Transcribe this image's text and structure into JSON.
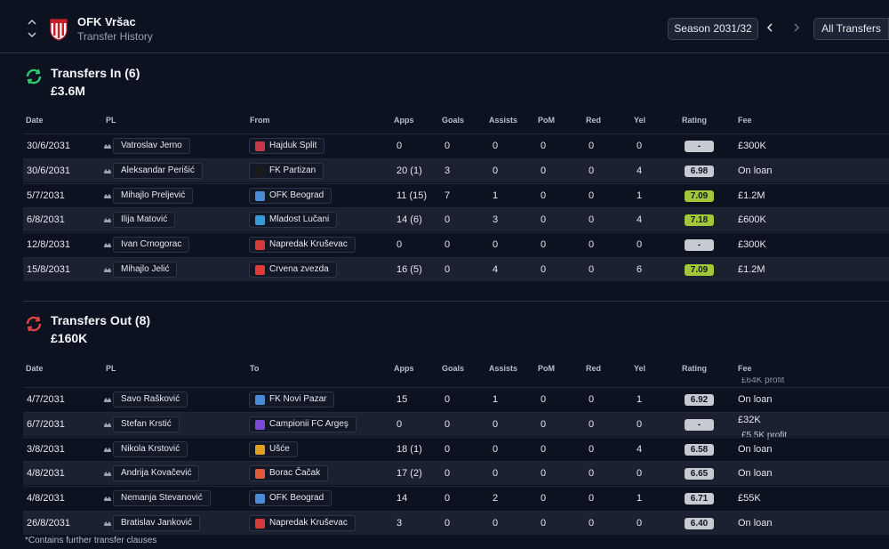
{
  "header": {
    "club_name": "OFK Vršac",
    "subtitle": "Transfer History",
    "season_label": "Season 2031/32",
    "all_transfers_label": "All Transfers",
    "prev_icon": "chevron-left-icon",
    "next_icon": "chevron-right-icon"
  },
  "colors": {
    "background": "#0d1220",
    "row_alt": "#1b2130",
    "rating_gray": "#c7cad1",
    "rating_green": "#a3c73a",
    "in_icon": "#2ecc71",
    "out_icon": "#e04545"
  },
  "transfers_in": {
    "title": "Transfers In (6)",
    "total": "£3.6M",
    "columns": [
      "Date",
      "PL",
      "From",
      "Apps",
      "Goals",
      "Assists",
      "PoM",
      "Red",
      "Yel",
      "Rating",
      "Fee"
    ],
    "rows": [
      {
        "date": "30/6/2031",
        "player": "Vatroslav Jerno",
        "club": "Hajduk Split",
        "crest": "#c8364a",
        "apps": "0",
        "goals": "0",
        "assists": "0",
        "pom": "0",
        "red": "0",
        "yel": "0",
        "rating": "-",
        "rating_color": "#c7cad1",
        "fee": "£300K"
      },
      {
        "date": "30/6/2031",
        "player": "Aleksandar Perišić",
        "club": "FK Partizan",
        "crest": "#1a1a1a",
        "apps": "20 (1)",
        "goals": "3",
        "assists": "0",
        "pom": "0",
        "red": "0",
        "yel": "4",
        "rating": "6.98",
        "rating_color": "#c7cad1",
        "fee": "On loan"
      },
      {
        "date": "5/7/2031",
        "player": "Mihajlo Preljević",
        "club": "OFK Beograd",
        "crest": "#4a8ad6",
        "apps": "11 (15)",
        "goals": "7",
        "assists": "1",
        "pom": "0",
        "red": "0",
        "yel": "1",
        "rating": "7.09",
        "rating_color": "#a3c73a",
        "fee": "£1.2M"
      },
      {
        "date": "6/8/2031",
        "player": "Ilija Matović",
        "club": "Mladost Lučani",
        "crest": "#3a9ad6",
        "apps": "14 (6)",
        "goals": "0",
        "assists": "3",
        "pom": "0",
        "red": "0",
        "yel": "4",
        "rating": "7.18",
        "rating_color": "#a3c73a",
        "fee": "£600K"
      },
      {
        "date": "12/8/2031",
        "player": "Ivan Crnogorac",
        "club": "Napredak Kruševac",
        "crest": "#d43a3a",
        "apps": "0",
        "goals": "0",
        "assists": "0",
        "pom": "0",
        "red": "0",
        "yel": "0",
        "rating": "-",
        "rating_color": "#c7cad1",
        "fee": "£300K"
      },
      {
        "date": "15/8/2031",
        "player": "Mihajlo Jelić",
        "club": "Crvena zvezda",
        "crest": "#e23a3a",
        "apps": "16 (5)",
        "goals": "0",
        "assists": "4",
        "pom": "0",
        "red": "0",
        "yel": "6",
        "rating": "7.09",
        "rating_color": "#a3c73a",
        "fee": "£1.2M"
      }
    ]
  },
  "transfers_out": {
    "title": "Transfers Out (8)",
    "total": "£160K",
    "columns": [
      "Date",
      "PL",
      "To",
      "Apps",
      "Goals",
      "Assists",
      "PoM",
      "Red",
      "Yel",
      "Rating",
      "Fee"
    ],
    "cut_fee": "£64K profit",
    "rows": [
      {
        "date": "4/7/2031",
        "player": "Savo Rašković",
        "club": "FK Novi Pazar",
        "crest": "#4a8ad6",
        "apps": "15",
        "goals": "0",
        "assists": "1",
        "pom": "0",
        "red": "0",
        "yel": "1",
        "rating": "6.92",
        "rating_color": "#c7cad1",
        "fee": "On loan",
        "fee2": ""
      },
      {
        "date": "6/7/2031",
        "player": "Stefan Krstić",
        "club": "Campionii FC Argeş",
        "crest": "#7a4ad6",
        "apps": "0",
        "goals": "0",
        "assists": "0",
        "pom": "0",
        "red": "0",
        "yel": "0",
        "rating": "-",
        "rating_color": "#c7cad1",
        "fee": "£32K",
        "fee2": "£5.5K profit"
      },
      {
        "date": "3/8/2031",
        "player": "Nikola Krstović",
        "club": "Ušće",
        "crest": "#e0a020",
        "apps": "18 (1)",
        "goals": "0",
        "assists": "0",
        "pom": "0",
        "red": "0",
        "yel": "4",
        "rating": "6.58",
        "rating_color": "#c7cad1",
        "fee": "On loan",
        "fee2": ""
      },
      {
        "date": "4/8/2031",
        "player": "Andrija Kovačević",
        "club": "Borac Čačak",
        "crest": "#e05a3a",
        "apps": "17 (2)",
        "goals": "0",
        "assists": "0",
        "pom": "0",
        "red": "0",
        "yel": "0",
        "rating": "6.65",
        "rating_color": "#c7cad1",
        "fee": "On loan",
        "fee2": ""
      },
      {
        "date": "4/8/2031",
        "player": "Nemanja Stevanović",
        "club": "OFK Beograd",
        "crest": "#4a8ad6",
        "apps": "14",
        "goals": "0",
        "assists": "2",
        "pom": "0",
        "red": "0",
        "yel": "1",
        "rating": "6.71",
        "rating_color": "#c7cad1",
        "fee": "£55K",
        "fee2": ""
      },
      {
        "date": "26/8/2031",
        "player": "Bratislav Janković",
        "club": "Napredak Kruševac",
        "crest": "#d43a3a",
        "apps": "3",
        "goals": "0",
        "assists": "0",
        "pom": "0",
        "red": "0",
        "yel": "0",
        "rating": "6.40",
        "rating_color": "#c7cad1",
        "fee": "On loan",
        "fee2": ""
      }
    ]
  },
  "footnote": "*Contains further transfer clauses"
}
